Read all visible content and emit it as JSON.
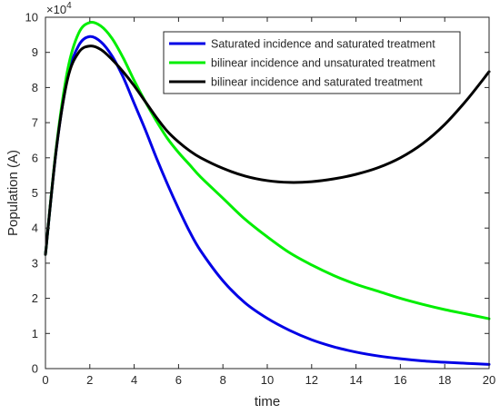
{
  "chart_data": {
    "type": "line",
    "title": "",
    "xlabel": "time",
    "ylabel": "Population (A)",
    "xlim": [
      0,
      20
    ],
    "ylim": [
      0,
      100000
    ],
    "y_multiplier_label": "×10",
    "y_multiplier_exponent": "4",
    "x_ticks": [
      0,
      2,
      4,
      6,
      8,
      10,
      12,
      14,
      16,
      18,
      20
    ],
    "x_tick_labels": [
      "0",
      "2",
      "4",
      "6",
      "8",
      "10",
      "12",
      "14",
      "16",
      "18",
      "20"
    ],
    "y_ticks": [
      0,
      10000,
      20000,
      30000,
      40000,
      50000,
      60000,
      70000,
      80000,
      90000,
      100000
    ],
    "y_tick_labels": [
      "0",
      "1",
      "2",
      "3",
      "4",
      "5",
      "6",
      "7",
      "8",
      "9",
      "10"
    ],
    "grid": false,
    "legend_position": "top-right",
    "series": [
      {
        "name": "Saturated incidence and saturated treatment",
        "color": "#0000e6",
        "x": [
          0,
          0.5,
          1,
          1.5,
          2,
          2.5,
          3,
          3.5,
          4,
          4.5,
          5,
          5.5,
          6,
          6.5,
          7,
          8,
          9,
          10,
          11,
          12,
          13,
          14,
          15,
          16,
          17,
          18,
          19,
          20
        ],
        "y": [
          32500,
          63000,
          83000,
          92000,
          94500,
          93000,
          89000,
          83000,
          75500,
          68000,
          60000,
          52500,
          45500,
          39000,
          33500,
          25000,
          18700,
          14300,
          10900,
          8200,
          6200,
          4700,
          3600,
          2800,
          2200,
          1800,
          1500,
          1200
        ]
      },
      {
        "name": "bilinear incidence and unsaturated treatment",
        "color": "#00ee00",
        "x": [
          0,
          0.5,
          1,
          1.5,
          2,
          2.5,
          3,
          3.5,
          4,
          4.5,
          5,
          5.5,
          6,
          6.5,
          7,
          8,
          9,
          10,
          11,
          12,
          13,
          14,
          15,
          16,
          17,
          18,
          19,
          20
        ],
        "y": [
          32500,
          63500,
          85000,
          95500,
          98500,
          97500,
          94000,
          88500,
          82000,
          76000,
          70500,
          65500,
          61500,
          58000,
          54500,
          48500,
          42500,
          37500,
          33000,
          29500,
          26500,
          24000,
          22000,
          20000,
          18300,
          16800,
          15500,
          14200
        ]
      },
      {
        "name": "bilinear incidence and saturated treatment",
        "color": "#000000",
        "x": [
          0,
          0.5,
          1,
          1.5,
          2,
          2.5,
          3,
          3.5,
          4,
          4.5,
          5,
          5.5,
          6,
          6.5,
          7,
          8,
          9,
          10,
          11,
          12,
          13,
          14,
          15,
          16,
          17,
          18,
          19,
          20
        ],
        "y": [
          32500,
          63000,
          82500,
          90000,
          91800,
          90800,
          88000,
          84500,
          80500,
          76000,
          71500,
          67500,
          64500,
          62000,
          60000,
          57000,
          54800,
          53500,
          53000,
          53200,
          54000,
          55300,
          57200,
          60000,
          64000,
          69500,
          76500,
          84500
        ]
      }
    ]
  }
}
